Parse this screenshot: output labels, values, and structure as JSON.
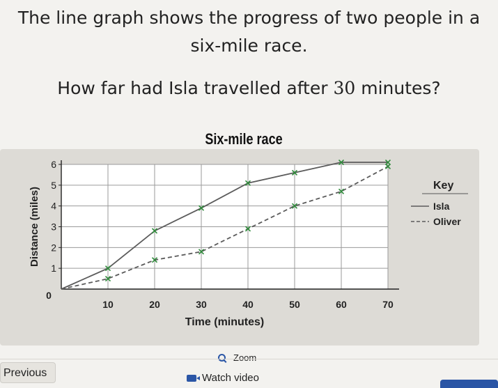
{
  "question": {
    "line1": "The line graph shows the progress of two people in a",
    "line2": "six-mile race.",
    "prompt_text": "How far had Isla travelled after ",
    "prompt_number": "30",
    "prompt_tail": " minutes?"
  },
  "chart_data": {
    "type": "line",
    "title": "Six-mile race",
    "xlabel": "Time (minutes)",
    "ylabel": "Distance (miles)",
    "xlim": [
      0,
      70
    ],
    "ylim": [
      0,
      6
    ],
    "x_ticks": [
      10,
      20,
      30,
      40,
      50,
      60,
      70
    ],
    "y_ticks": [
      0,
      1,
      2,
      3,
      4,
      5,
      6
    ],
    "grid": true,
    "legend_title": "Key",
    "legend_position": "right",
    "series": [
      {
        "name": "Isla",
        "style": "solid",
        "color": "#5b5b5b",
        "x": [
          0,
          10,
          20,
          30,
          40,
          50,
          60,
          70
        ],
        "y": [
          0,
          1.0,
          2.8,
          3.9,
          5.1,
          5.6,
          6.1,
          6.1
        ]
      },
      {
        "name": "Oliver",
        "style": "dashed",
        "color": "#5b5b5b",
        "x": [
          0,
          10,
          20,
          30,
          40,
          50,
          60,
          70
        ],
        "y": [
          0,
          0.5,
          1.4,
          1.8,
          2.9,
          4.0,
          4.7,
          5.9
        ]
      }
    ]
  },
  "footer": {
    "zoom_label": "Zoom",
    "previous_label": "Previous",
    "watch_label": "Watch video"
  },
  "colors": {
    "accent": "#2b56a6",
    "panel": "#dddbd6",
    "plot_bg": "#ffffff"
  }
}
